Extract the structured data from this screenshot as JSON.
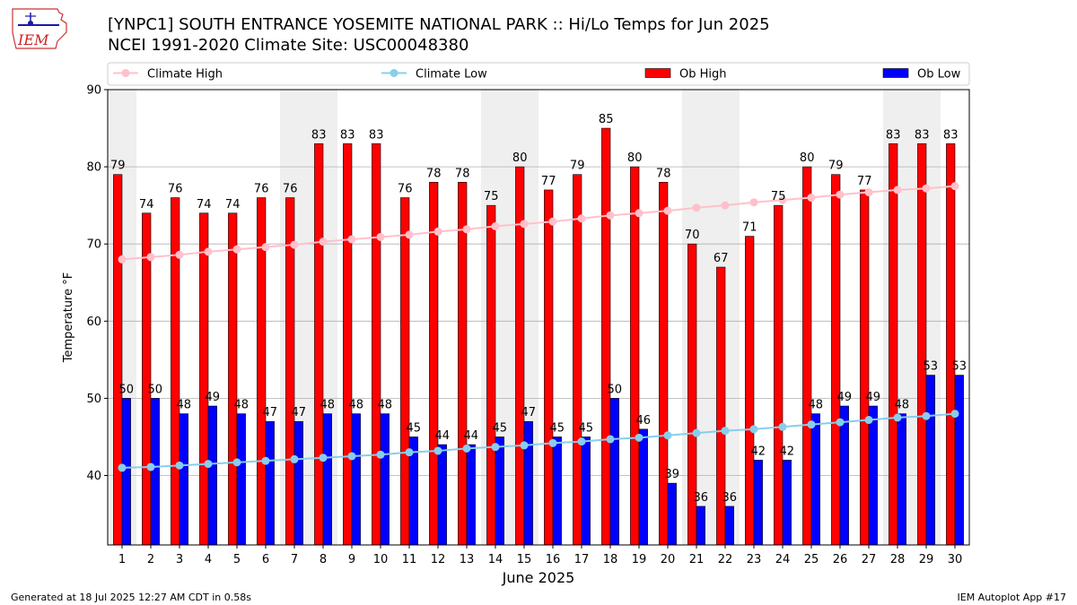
{
  "header": {
    "title_line1": "[YNPC1] SOUTH ENTRANCE YOSEMITE NATIONAL PARK :: Hi/Lo Temps for Jun 2025",
    "title_line2": "NCEI 1991-2020 Climate Site: USC00048380",
    "logo_text": "IEM"
  },
  "footer": {
    "left": "Generated at 18 Jul 2025 12:27 AM CDT in 0.58s",
    "right": "IEM Autoplot App #17"
  },
  "colors": {
    "ob_high": "#ff0000",
    "ob_low": "#0000ff",
    "climate_high": "#ffc0cb",
    "climate_low": "#87ceeb",
    "weekend_shade": "#efefef",
    "grid": "#b0b0b0"
  },
  "chart_data": {
    "type": "bar",
    "xlabel": "June 2025",
    "ylabel": "Temperature °F",
    "ylim": [
      31,
      90
    ],
    "yticks": [
      40,
      50,
      60,
      70,
      80,
      90
    ],
    "grid": "horizontal",
    "legend_position": "top",
    "categories": [
      1,
      2,
      3,
      4,
      5,
      6,
      7,
      8,
      9,
      10,
      11,
      12,
      13,
      14,
      15,
      16,
      17,
      18,
      19,
      20,
      21,
      22,
      23,
      24,
      25,
      26,
      27,
      28,
      29,
      30
    ],
    "shaded_days": [
      1,
      7,
      8,
      14,
      15,
      21,
      22,
      28,
      29
    ],
    "series": [
      {
        "name": "Climate High",
        "kind": "line",
        "values": [
          68.0,
          68.3,
          68.6,
          69.0,
          69.3,
          69.6,
          69.9,
          70.3,
          70.6,
          70.9,
          71.2,
          71.6,
          71.9,
          72.3,
          72.6,
          72.9,
          73.3,
          73.7,
          74.0,
          74.3,
          74.7,
          75.0,
          75.4,
          75.7,
          76.0,
          76.4,
          76.7,
          77.0,
          77.2,
          77.5
        ]
      },
      {
        "name": "Climate Low",
        "kind": "line",
        "values": [
          41.0,
          41.1,
          41.3,
          41.5,
          41.7,
          41.9,
          42.1,
          42.3,
          42.5,
          42.7,
          43.0,
          43.2,
          43.5,
          43.7,
          43.9,
          44.2,
          44.4,
          44.7,
          44.9,
          45.2,
          45.5,
          45.8,
          46.0,
          46.3,
          46.6,
          46.9,
          47.2,
          47.5,
          47.7,
          48.0
        ]
      },
      {
        "name": "Ob High",
        "kind": "bar",
        "values": [
          79,
          74,
          76,
          74,
          74,
          76,
          76,
          83,
          83,
          83,
          76,
          78,
          78,
          75,
          80,
          77,
          79,
          85,
          80,
          78,
          70,
          67,
          71,
          75,
          80,
          79,
          77,
          83,
          83,
          83
        ]
      },
      {
        "name": "Ob Low",
        "kind": "bar",
        "values": [
          50,
          50,
          48,
          49,
          48,
          47,
          47,
          48,
          48,
          48,
          45,
          44,
          44,
          45,
          47,
          45,
          45,
          50,
          46,
          39,
          36,
          36,
          42,
          42,
          48,
          49,
          49,
          48,
          53,
          53
        ]
      }
    ]
  }
}
